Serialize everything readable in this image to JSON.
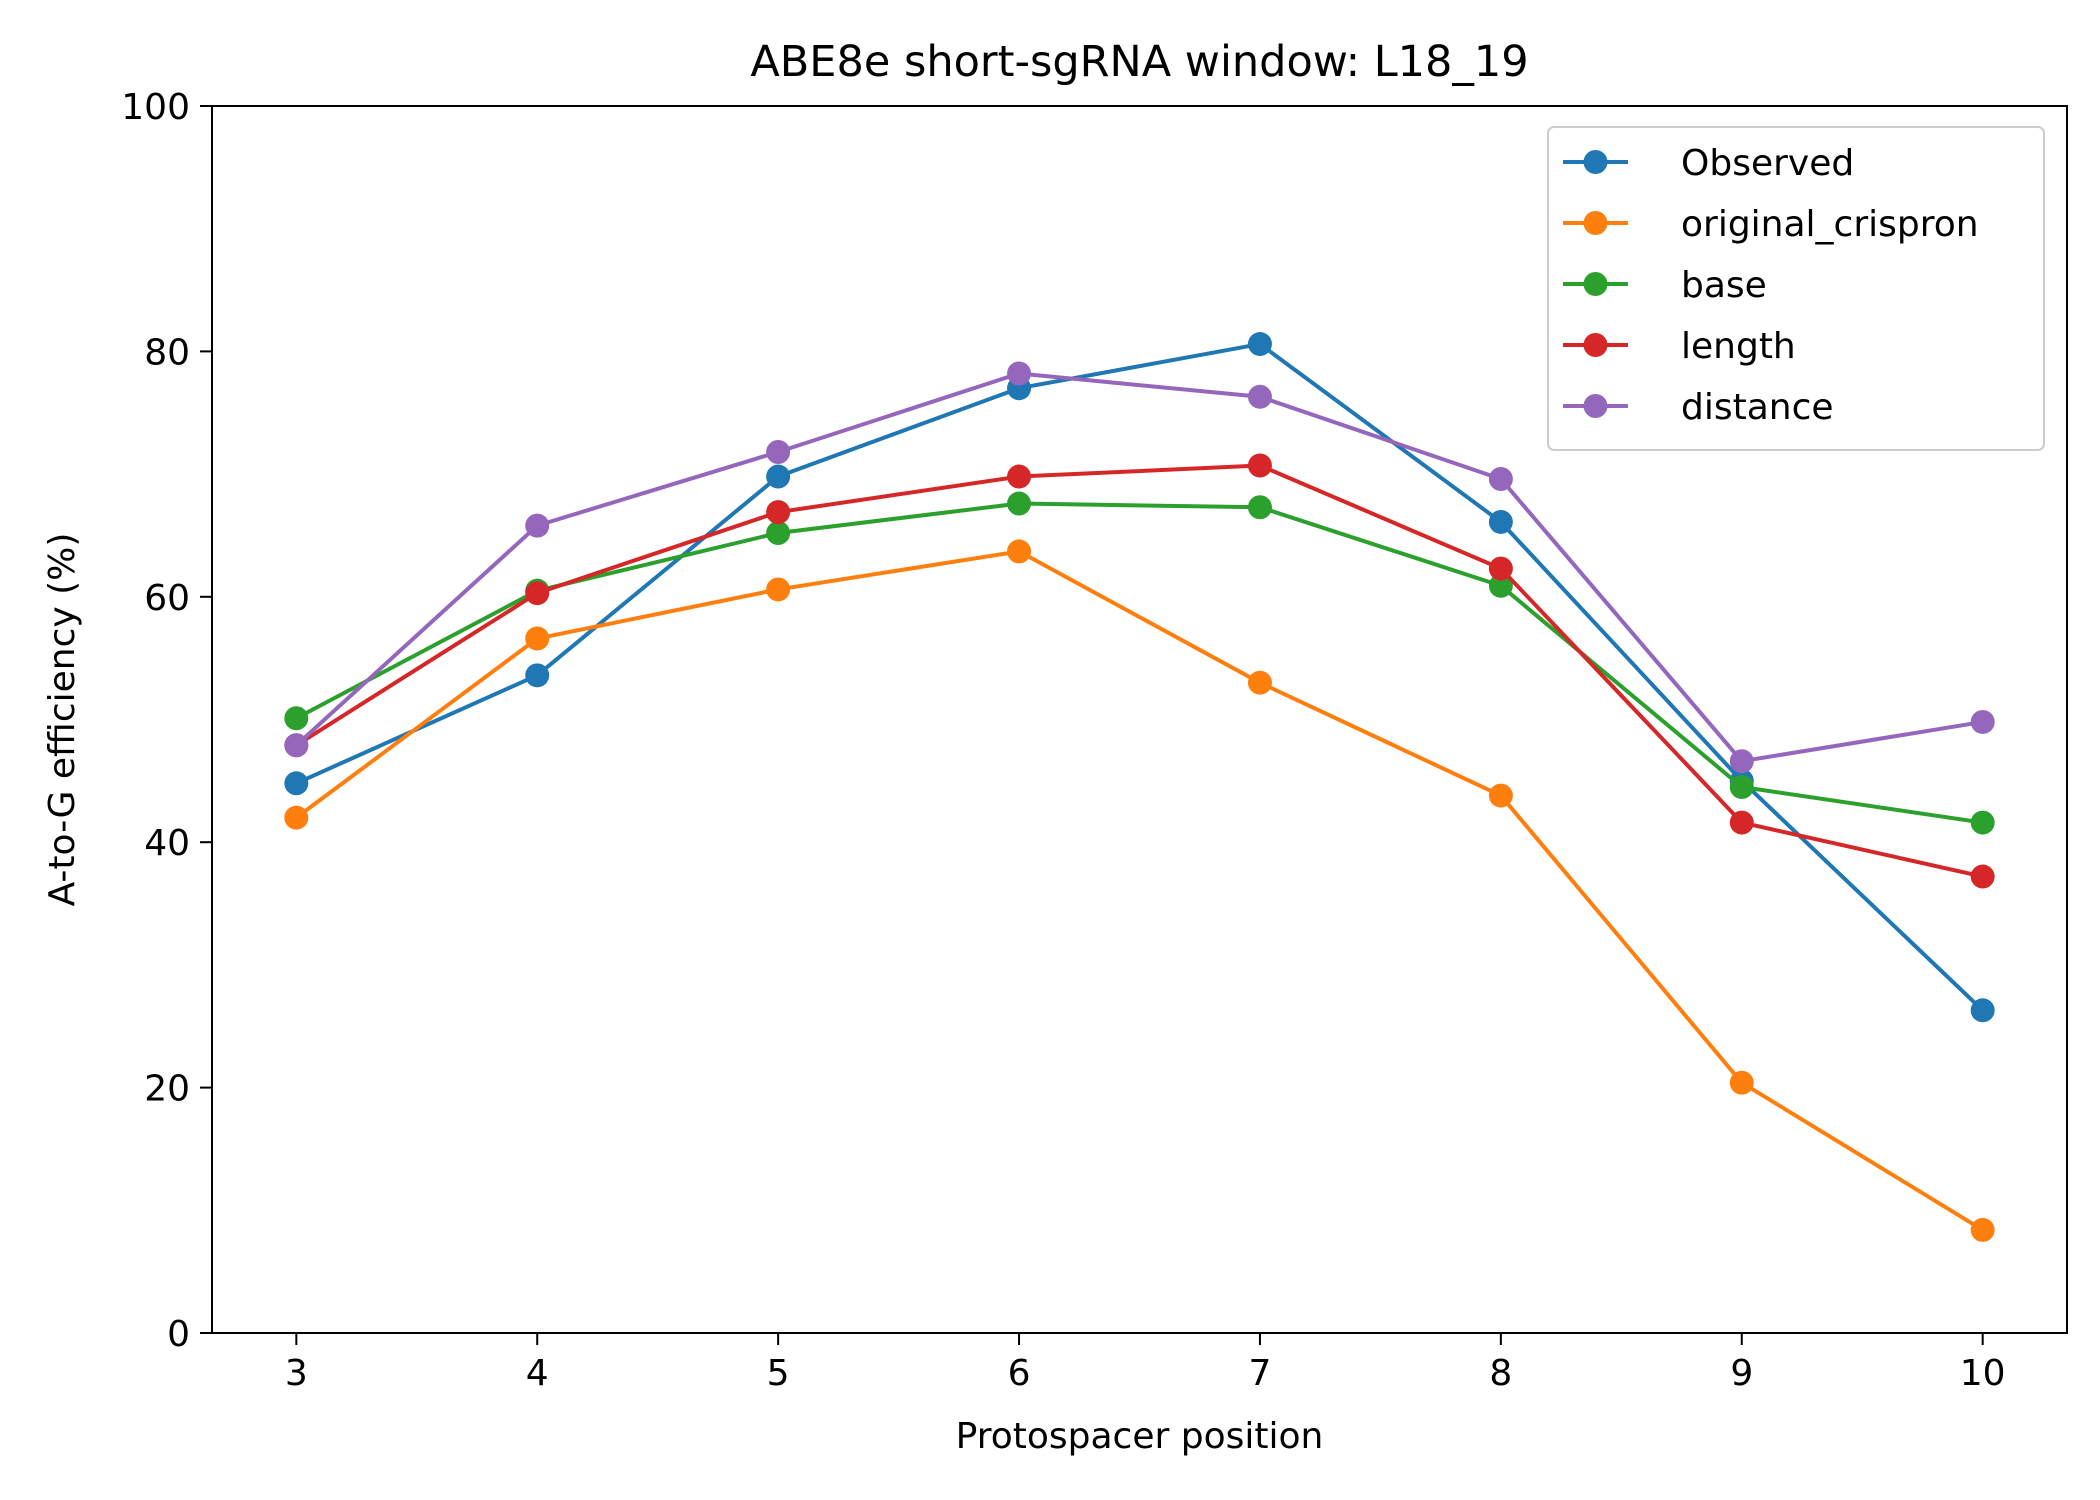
{
  "chart_data": {
    "type": "line",
    "title": "ABE8e short-sgRNA window: L18_19",
    "xlabel": "Protospacer position",
    "ylabel": "A-to-G efficiency (%)",
    "x": [
      3,
      4,
      5,
      6,
      7,
      8,
      9,
      10
    ],
    "xlim": [
      2.65,
      10.35
    ],
    "ylim": [
      0,
      100
    ],
    "xticks": [
      "3",
      "4",
      "5",
      "6",
      "7",
      "8",
      "9",
      "10"
    ],
    "yticks": [
      "0",
      "20",
      "40",
      "60",
      "80",
      "100"
    ],
    "grid": false,
    "legend_position": "top-right",
    "series": [
      {
        "name": "Observed",
        "color": "#1f77b4",
        "values": [
          44.8,
          53.6,
          69.8,
          77.0,
          80.6,
          66.1,
          45.0,
          26.3
        ]
      },
      {
        "name": "original_crispron",
        "color": "#ff7f0e",
        "values": [
          42.0,
          56.6,
          60.6,
          63.7,
          53.0,
          43.8,
          20.4,
          8.4
        ]
      },
      {
        "name": "base",
        "color": "#2ca02c",
        "values": [
          50.1,
          60.5,
          65.2,
          67.6,
          67.3,
          60.9,
          44.5,
          41.6
        ]
      },
      {
        "name": "length",
        "color": "#d62728",
        "values": [
          47.9,
          60.3,
          66.9,
          69.8,
          70.7,
          62.3,
          41.6,
          37.2
        ]
      },
      {
        "name": "distance",
        "color": "#9467bd",
        "values": [
          47.9,
          65.8,
          71.8,
          78.2,
          76.3,
          69.6,
          46.6,
          49.8
        ]
      }
    ]
  }
}
